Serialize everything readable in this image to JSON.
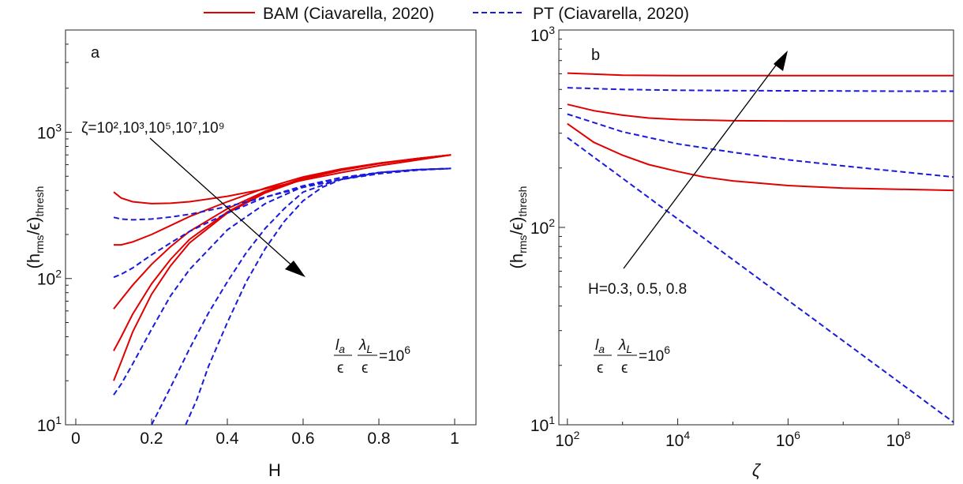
{
  "legend": {
    "entries": [
      {
        "label": "BAM (Ciavarella, 2020)",
        "color": "#e00000",
        "dash": "solid"
      },
      {
        "label": "PT (Ciavarella, 2020)",
        "color": "#1a1adc",
        "dash": "dashed"
      }
    ],
    "placement": "top-center"
  },
  "chart_data": [
    {
      "type": "line",
      "panel_label": "a",
      "xlabel": "H",
      "ylabel_base": "(h",
      "ylabel_sub1": "rms",
      "ylabel_mid": "/ϵ)",
      "ylabel_sub2": "thresh",
      "xlim": [
        0,
        1
      ],
      "ylim": [
        10,
        5000
      ],
      "yscale": "log",
      "xticks": [
        "0",
        "0.2",
        "0.4",
        "0.6",
        "0.8",
        "1"
      ],
      "yticks": [
        {
          "base": "10",
          "exp": "1"
        },
        {
          "base": "10",
          "exp": "2"
        },
        {
          "base": "10",
          "exp": "3"
        }
      ],
      "annotation_zeta": "ζ=10²,10³,10⁵,10⁷,10⁹",
      "annotation_param": {
        "num1": "l",
        "sub1": "a",
        "num2": "λ",
        "sub2": "L",
        "den": "ϵ",
        "rhs": "=10",
        "rhs_exp": "6"
      },
      "series": [
        {
          "group": "BAM",
          "x": [
            0.1,
            0.12,
            0.15,
            0.2,
            0.25,
            0.3,
            0.4,
            0.5,
            0.6,
            0.7,
            0.8,
            0.9,
            0.99
          ],
          "y": [
            390,
            355,
            335,
            325,
            327,
            335,
            365,
            410,
            470,
            530,
            590,
            645,
            700
          ]
        },
        {
          "group": "BAM",
          "x": [
            0.1,
            0.12,
            0.15,
            0.2,
            0.25,
            0.3,
            0.4,
            0.5,
            0.6,
            0.7,
            0.8,
            0.9,
            0.99
          ],
          "y": [
            170,
            170,
            178,
            200,
            230,
            265,
            335,
            415,
            495,
            560,
            615,
            660,
            700
          ]
        },
        {
          "group": "BAM",
          "x": [
            0.1,
            0.12,
            0.15,
            0.2,
            0.25,
            0.3,
            0.4,
            0.5,
            0.6,
            0.7,
            0.8,
            0.9,
            0.99
          ],
          "y": [
            62,
            72,
            90,
            125,
            165,
            210,
            300,
            395,
            485,
            555,
            610,
            660,
            700
          ]
        },
        {
          "group": "BAM",
          "x": [
            0.1,
            0.12,
            0.15,
            0.2,
            0.25,
            0.3,
            0.4,
            0.5,
            0.6,
            0.7,
            0.8,
            0.9,
            0.99
          ],
          "y": [
            32,
            40,
            57,
            92,
            135,
            185,
            285,
            390,
            480,
            550,
            610,
            660,
            700
          ]
        },
        {
          "group": "BAM",
          "x": [
            0.1,
            0.12,
            0.15,
            0.2,
            0.25,
            0.3,
            0.4,
            0.5,
            0.6,
            0.7,
            0.8,
            0.9,
            0.99
          ],
          "y": [
            20,
            27,
            43,
            78,
            122,
            175,
            280,
            385,
            478,
            550,
            610,
            660,
            700
          ]
        },
        {
          "group": "PT",
          "x": [
            0.1,
            0.12,
            0.15,
            0.2,
            0.25,
            0.3,
            0.4,
            0.5,
            0.6,
            0.7,
            0.8,
            0.9,
            0.99
          ],
          "y": [
            262,
            255,
            252,
            255,
            263,
            275,
            310,
            360,
            420,
            475,
            520,
            550,
            565
          ]
        },
        {
          "group": "PT",
          "x": [
            0.1,
            0.12,
            0.15,
            0.2,
            0.25,
            0.3,
            0.4,
            0.5,
            0.6,
            0.7,
            0.8,
            0.9,
            0.99
          ],
          "y": [
            102,
            107,
            118,
            145,
            175,
            210,
            280,
            360,
            430,
            490,
            530,
            555,
            565
          ]
        },
        {
          "group": "PT",
          "x": [
            0.1,
            0.12,
            0.15,
            0.2,
            0.25,
            0.3,
            0.4,
            0.5,
            0.6,
            0.7,
            0.8,
            0.9,
            0.99
          ],
          "y": [
            16,
            19,
            26,
            45,
            76,
            115,
            215,
            325,
            425,
            490,
            530,
            555,
            565
          ]
        },
        {
          "group": "PT",
          "x": [
            0.2,
            0.25,
            0.3,
            0.35,
            0.4,
            0.45,
            0.5,
            0.55,
            0.6,
            0.7,
            0.8,
            0.9,
            0.99
          ],
          "y": [
            9,
            18,
            33,
            58,
            95,
            150,
            220,
            300,
            390,
            480,
            530,
            555,
            565
          ]
        },
        {
          "group": "PT",
          "x": [
            0.29,
            0.32,
            0.35,
            0.4,
            0.45,
            0.5,
            0.55,
            0.6,
            0.65,
            0.7,
            0.8,
            0.9,
            0.99
          ],
          "y": [
            9,
            15,
            25,
            50,
            95,
            160,
            245,
            340,
            420,
            475,
            530,
            555,
            565
          ]
        }
      ]
    },
    {
      "type": "line",
      "panel_label": "b",
      "xlabel": "ζ",
      "ylabel_base": "(h",
      "ylabel_sub1": "rms",
      "ylabel_mid": "/ϵ)",
      "ylabel_sub2": "thresh",
      "xscale": "log",
      "yscale": "log",
      "xlim": [
        70,
        1000000000
      ],
      "ylim": [
        10,
        1000
      ],
      "xticks": [
        {
          "base": "10",
          "exp": "2"
        },
        {
          "base": "10",
          "exp": "4"
        },
        {
          "base": "10",
          "exp": "6"
        },
        {
          "base": "10",
          "exp": "8"
        }
      ],
      "yticks": [
        {
          "base": "10",
          "exp": "1"
        },
        {
          "base": "10",
          "exp": "2"
        },
        {
          "base": "10",
          "exp": "3"
        }
      ],
      "annotation_H": "H=0.3, 0.5, 0.8",
      "annotation_param": {
        "num1": "l",
        "sub1": "a",
        "num2": "λ",
        "sub2": "L",
        "den": "ϵ",
        "rhs": "=10",
        "rhs_exp": "6"
      },
      "series": [
        {
          "group": "BAM",
          "H": "0.8",
          "x": [
            100,
            1000,
            10000,
            100000,
            1000000,
            10000000,
            100000000,
            1000000000
          ],
          "y": [
            605,
            590,
            588,
            588,
            588,
            588,
            588,
            588
          ]
        },
        {
          "group": "BAM",
          "H": "0.5",
          "x": [
            100,
            300,
            1000,
            3000,
            10000,
            100000,
            1000000,
            10000000,
            100000000,
            1000000000
          ],
          "y": [
            420,
            390,
            370,
            358,
            352,
            347,
            346,
            346,
            346,
            346
          ]
        },
        {
          "group": "BAM",
          "H": "0.3",
          "x": [
            100,
            300,
            1000,
            3000,
            10000,
            30000,
            100000,
            1000000,
            10000000,
            100000000,
            1000000000
          ],
          "y": [
            335,
            270,
            232,
            208,
            192,
            180,
            172,
            163,
            158,
            156,
            154
          ]
        },
        {
          "group": "PT",
          "H": "0.8",
          "x": [
            100,
            1000,
            10000,
            100000,
            1000000,
            10000000,
            100000000,
            1000000000
          ],
          "y": [
            510,
            500,
            495,
            493,
            492,
            491,
            490,
            490
          ]
        },
        {
          "group": "PT",
          "H": "0.5",
          "x": [
            100,
            1000,
            10000,
            100000,
            1000000,
            10000000,
            100000000,
            1000000000
          ],
          "y": [
            375,
            305,
            265,
            240,
            220,
            205,
            192,
            180
          ]
        },
        {
          "group": "PT",
          "H": "0.3",
          "x": [
            100,
            1000000000
          ],
          "y": [
            285,
            10.3
          ]
        }
      ]
    }
  ]
}
